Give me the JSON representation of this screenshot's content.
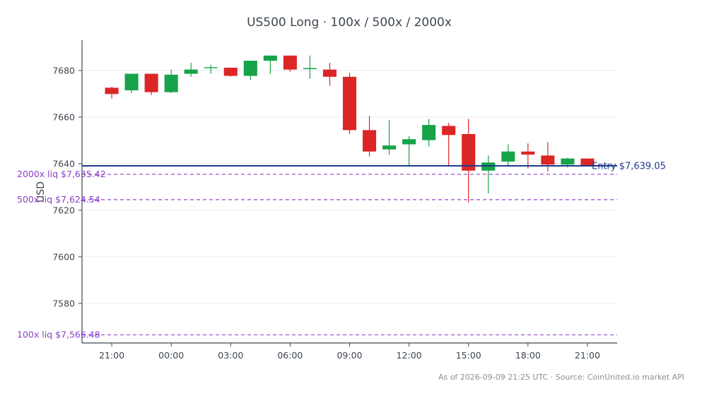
{
  "chart_data": {
    "type": "candlestick",
    "title": "US500 Long · 100x / 500x / 2000x",
    "ylabel": "USD",
    "ylim": [
      7563,
      7693
    ],
    "yticks": [
      7580,
      7600,
      7620,
      7640,
      7660,
      7680
    ],
    "x_tick_labels": [
      "21:00",
      "00:00",
      "03:00",
      "06:00",
      "09:00",
      "12:00",
      "15:00",
      "18:00",
      "21:00"
    ],
    "x_tick_hours": [
      0,
      3,
      6,
      9,
      12,
      15,
      18,
      21,
      24
    ],
    "x_range_hours": [
      -1.5,
      25.5
    ],
    "grid": true,
    "colors": {
      "up": "#16a34a",
      "down": "#dc2626",
      "entry": "#1f3a8a",
      "liq": "#9b59d0"
    },
    "candles": [
      {
        "t": 0,
        "o": 7672.6,
        "h": 7673.0,
        "l": 7668.0,
        "c": 7669.9
      },
      {
        "t": 1,
        "o": 7671.5,
        "h": 7678.6,
        "l": 7670.3,
        "c": 7678.6
      },
      {
        "t": 2,
        "o": 7678.6,
        "h": 7678.6,
        "l": 7669.4,
        "c": 7670.7
      },
      {
        "t": 3,
        "o": 7670.7,
        "h": 7680.4,
        "l": 7670.3,
        "c": 7678.2
      },
      {
        "t": 4,
        "o": 7678.6,
        "h": 7683.3,
        "l": 7677.3,
        "c": 7680.4
      },
      {
        "t": 5,
        "o": 7680.8,
        "h": 7682.5,
        "l": 7678.6,
        "c": 7681.2
      },
      {
        "t": 6,
        "o": 7681.2,
        "h": 7681.2,
        "l": 7677.3,
        "c": 7677.7
      },
      {
        "t": 7,
        "o": 7677.7,
        "h": 7684.2,
        "l": 7676.0,
        "c": 7684.2
      },
      {
        "t": 8,
        "o": 7684.2,
        "h": 7686.4,
        "l": 7678.6,
        "c": 7686.4
      },
      {
        "t": 9,
        "o": 7686.4,
        "h": 7686.4,
        "l": 7679.5,
        "c": 7680.4
      },
      {
        "t": 10,
        "o": 7680.4,
        "h": 7686.4,
        "l": 7676.4,
        "c": 7680.8
      },
      {
        "t": 11,
        "o": 7680.4,
        "h": 7683.3,
        "l": 7673.4,
        "c": 7677.3
      },
      {
        "t": 12,
        "o": 7677.3,
        "h": 7679.0,
        "l": 7652.7,
        "c": 7654.4
      },
      {
        "t": 13,
        "o": 7654.4,
        "h": 7660.5,
        "l": 7643.1,
        "c": 7645.2
      },
      {
        "t": 14,
        "o": 7646.1,
        "h": 7658.7,
        "l": 7643.9,
        "c": 7647.8
      },
      {
        "t": 15,
        "o": 7648.3,
        "h": 7651.8,
        "l": 7639.2,
        "c": 7650.5
      },
      {
        "t": 16,
        "o": 7650.1,
        "h": 7659.2,
        "l": 7647.4,
        "c": 7656.6
      },
      {
        "t": 17,
        "o": 7656.2,
        "h": 7657.5,
        "l": 7639.2,
        "c": 7652.3
      },
      {
        "t": 18,
        "o": 7652.7,
        "h": 7659.2,
        "l": 7623.3,
        "c": 7637.0
      },
      {
        "t": 19,
        "o": 7637.0,
        "h": 7643.5,
        "l": 7627.2,
        "c": 7640.5
      },
      {
        "t": 20,
        "o": 7640.9,
        "h": 7648.3,
        "l": 7638.7,
        "c": 7645.2
      },
      {
        "t": 21,
        "o": 7645.2,
        "h": 7648.7,
        "l": 7637.9,
        "c": 7643.9
      },
      {
        "t": 22,
        "o": 7643.5,
        "h": 7649.2,
        "l": 7636.6,
        "c": 7639.6
      },
      {
        "t": 23,
        "o": 7639.6,
        "h": 7642.6,
        "l": 7638.3,
        "c": 7642.2
      },
      {
        "t": 24,
        "o": 7642.2,
        "h": 7642.2,
        "l": 7639.2,
        "c": 7639.2
      }
    ],
    "entry": {
      "value": 7639.05,
      "label": "Entry $7,639.05"
    },
    "liquidation_lines": [
      {
        "value": 7635.42,
        "label": "2000x liq $7,635.42"
      },
      {
        "value": 7624.54,
        "label": "500x liq $7,624.54"
      },
      {
        "value": 7566.48,
        "label": "100x liq $7,566.48"
      }
    ]
  },
  "footer": "As of 2026-09-09 21:25 UTC · Source: CoinUnited.io market API"
}
